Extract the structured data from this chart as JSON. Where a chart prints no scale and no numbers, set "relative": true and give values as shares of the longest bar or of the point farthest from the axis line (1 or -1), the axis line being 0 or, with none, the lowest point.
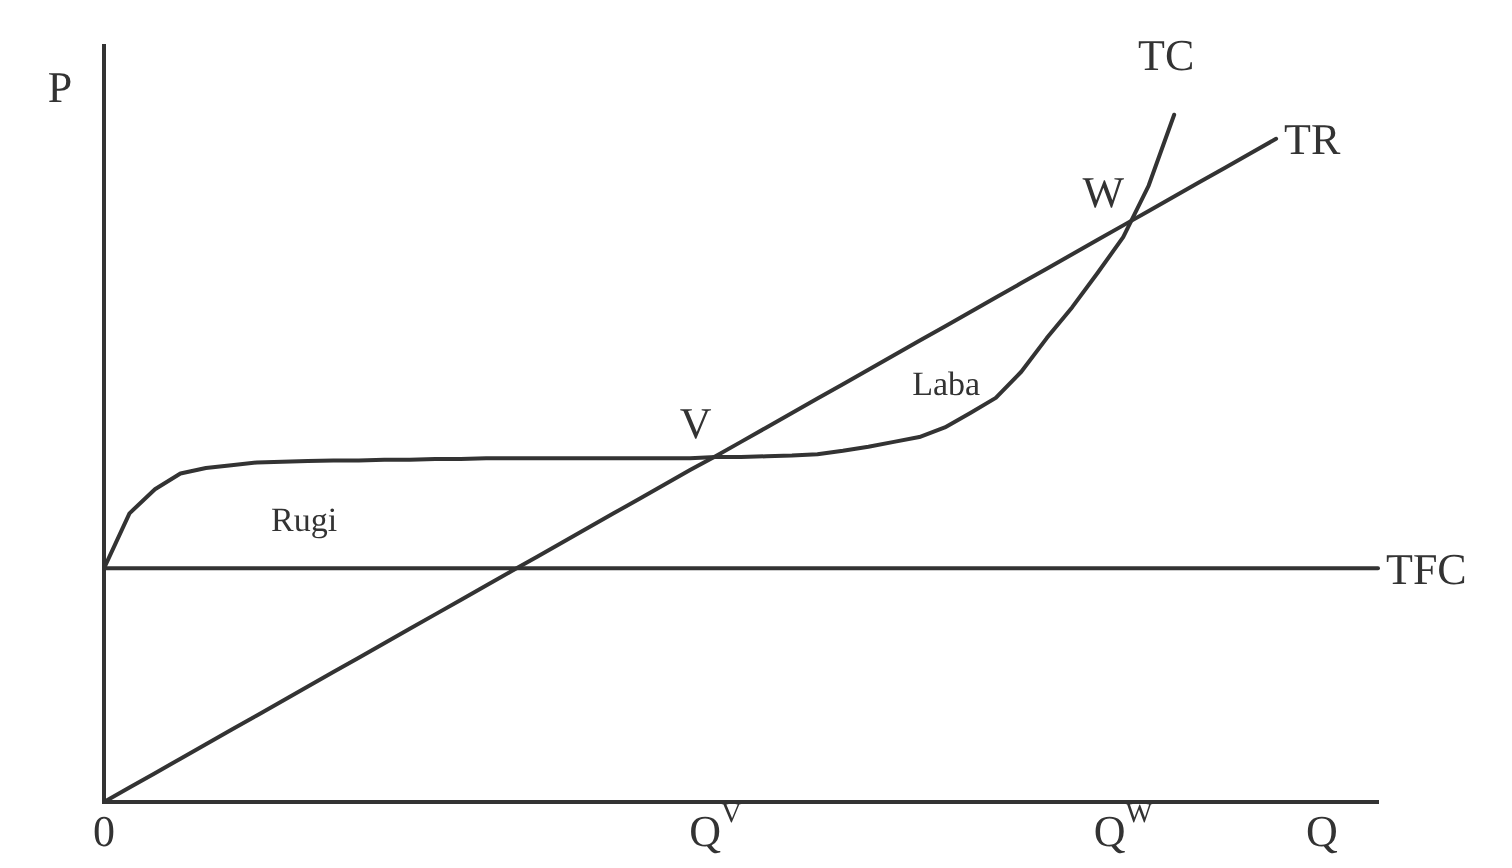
{
  "chart_data": {
    "type": "line",
    "relative": true,
    "xlabel": "Q",
    "ylabel": "P",
    "categories": [
      "0",
      null,
      null,
      null,
      null,
      null,
      null,
      null,
      null,
      null,
      null,
      null,
      null,
      null,
      null,
      null,
      null,
      null,
      null,
      null,
      null,
      null,
      null,
      null,
      "Q$^{V}$",
      null,
      null,
      null,
      null,
      null,
      null,
      null,
      null,
      null,
      null,
      null,
      null,
      null,
      null,
      null,
      "Q$^{W}$",
      null,
      null,
      null,
      null,
      null,
      null,
      null,
      null,
      null,
      null
    ],
    "series": [
      {
        "name": "TC",
        "color": "#333333",
        "values": [
          0.34,
          0.42,
          0.455,
          0.478,
          0.486,
          0.49,
          0.494,
          0.495,
          0.496,
          0.497,
          0.497,
          0.498,
          0.498,
          0.499,
          0.499,
          0.5,
          0.5,
          0.5,
          0.5,
          0.5,
          0.5,
          0.5,
          0.5,
          0.5,
          0.502,
          0.502,
          0.503,
          0.504,
          0.506,
          0.511,
          0.517,
          0.524,
          0.531,
          0.545,
          0.566,
          0.588,
          0.626,
          0.675,
          0.72,
          0.77,
          0.822,
          0.897,
          1,
          null,
          null,
          null,
          null,
          null,
          null,
          null,
          null
        ]
      },
      {
        "name": "TR",
        "color": "#333333",
        "values": [
          0,
          0.021,
          0.042,
          0.063,
          0.084,
          0.105,
          0.126,
          0.147,
          0.168,
          0.189,
          0.21,
          0.231,
          0.252,
          0.273,
          0.294,
          0.315,
          0.336,
          0.357,
          0.378,
          0.399,
          0.42,
          0.441,
          0.462,
          0.483,
          0.503,
          0.524,
          0.545,
          0.566,
          0.587,
          0.608,
          0.629,
          0.65,
          0.671,
          0.692,
          0.713,
          0.734,
          0.755,
          0.776,
          0.797,
          0.818,
          0.839,
          0.86,
          0.881,
          0.902,
          0.923,
          0.944,
          0.965,
          null,
          null,
          null,
          null
        ]
      },
      {
        "name": "TFC",
        "color": "#333333",
        "values": [
          0.34,
          0.34,
          0.34,
          0.34,
          0.34,
          0.34,
          0.34,
          0.34,
          0.34,
          0.34,
          0.34,
          0.34,
          0.34,
          0.34,
          0.34,
          0.34,
          0.34,
          0.34,
          0.34,
          0.34,
          0.34,
          0.34,
          0.34,
          0.34,
          0.34,
          0.34,
          0.34,
          0.34,
          0.34,
          0.34,
          0.34,
          0.34,
          0.34,
          0.34,
          0.34,
          0.34,
          0.34,
          0.34,
          0.34,
          0.34,
          0.34,
          0.34,
          0.34,
          0.34,
          0.34,
          0.34,
          0.34,
          0.34,
          0.34,
          0.34,
          0.34
        ]
      }
    ],
    "annotations": [
      {
        "text": "V",
        "x": "Q$^{V}$",
        "y": 0.503
      },
      {
        "text": "W",
        "x": "Q$^{W}$",
        "y": 0.839
      },
      "Rugi",
      "Laba"
    ],
    "grid": false,
    "legend": false,
    "marker": "none",
    "line_style": "solid"
  }
}
